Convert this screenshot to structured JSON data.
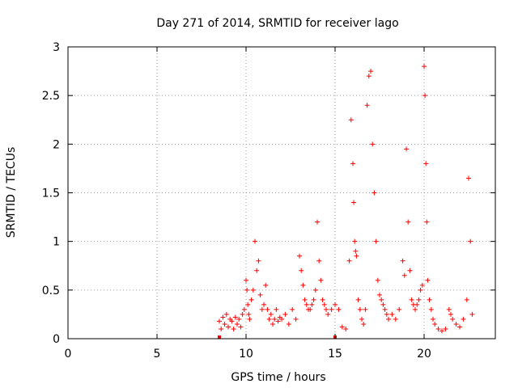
{
  "chart_data": {
    "type": "scatter",
    "title": "Day 271 of 2014, SRMTID for receiver lago",
    "xlabel": "GPS time / hours",
    "ylabel": "SRMTID / TECUs",
    "xlim": [
      0,
      24
    ],
    "ylim": [
      0,
      3
    ],
    "xticks": [
      0,
      5,
      10,
      15,
      20
    ],
    "xtick_labels": [
      "0",
      "5",
      "10",
      "15",
      "20"
    ],
    "yticks": [
      0,
      0.5,
      1,
      1.5,
      2,
      2.5,
      3
    ],
    "ytick_labels": [
      "0",
      "0.5",
      "1",
      "1.5",
      "2",
      "2.5",
      "3"
    ],
    "grid": true,
    "marker": "plus",
    "series_color": "#ff0000",
    "series": [
      {
        "name": "SRMTID",
        "x": [
          8.5,
          8.6,
          8.7,
          8.8,
          8.9,
          9.0,
          9.1,
          9.2,
          9.3,
          9.4,
          9.5,
          9.6,
          9.7,
          9.8,
          9.9,
          10.0,
          10.05,
          10.1,
          10.15,
          10.2,
          10.3,
          10.4,
          10.5,
          10.6,
          10.7,
          10.8,
          10.9,
          11.0,
          11.1,
          11.2,
          11.3,
          11.4,
          11.5,
          11.6,
          11.7,
          11.8,
          11.9,
          12.0,
          12.2,
          12.4,
          12.6,
          12.8,
          13.0,
          13.1,
          13.2,
          13.3,
          13.4,
          13.5,
          13.6,
          13.7,
          13.8,
          13.9,
          14.0,
          14.1,
          14.2,
          14.3,
          14.4,
          14.5,
          14.6,
          14.8,
          15.0,
          15.2,
          15.4,
          15.6,
          15.8,
          15.9,
          16.0,
          16.05,
          16.1,
          16.15,
          16.2,
          16.3,
          16.4,
          16.5,
          16.6,
          16.7,
          16.8,
          16.9,
          17.0,
          17.1,
          17.2,
          17.3,
          17.4,
          17.5,
          17.6,
          17.7,
          17.8,
          17.9,
          18.0,
          18.2,
          18.4,
          18.6,
          18.8,
          18.9,
          19.0,
          19.1,
          19.2,
          19.3,
          19.4,
          19.5,
          19.6,
          19.7,
          19.8,
          19.9,
          20.0,
          20.05,
          20.1,
          20.15,
          20.2,
          20.3,
          20.4,
          20.5,
          20.6,
          20.8,
          21.0,
          21.2,
          21.4,
          21.5,
          21.6,
          21.8,
          22.0,
          22.2,
          22.4,
          22.5,
          22.6,
          22.7
        ],
        "y": [
          0.18,
          0.1,
          0.22,
          0.15,
          0.25,
          0.12,
          0.2,
          0.18,
          0.1,
          0.22,
          0.15,
          0.2,
          0.12,
          0.25,
          0.3,
          0.6,
          0.5,
          0.35,
          0.25,
          0.2,
          0.4,
          0.5,
          1.0,
          0.7,
          0.8,
          0.45,
          0.3,
          0.35,
          0.55,
          0.3,
          0.2,
          0.25,
          0.15,
          0.2,
          0.3,
          0.18,
          0.22,
          0.2,
          0.25,
          0.15,
          0.3,
          0.2,
          0.85,
          0.7,
          0.55,
          0.4,
          0.35,
          0.3,
          0.3,
          0.35,
          0.4,
          0.5,
          1.2,
          0.8,
          0.6,
          0.4,
          0.35,
          0.3,
          0.25,
          0.3,
          0.35,
          0.3,
          0.12,
          0.1,
          0.8,
          2.25,
          1.8,
          1.4,
          1.0,
          0.9,
          0.85,
          0.4,
          0.3,
          0.2,
          0.15,
          0.3,
          2.4,
          2.7,
          2.75,
          2.0,
          1.5,
          1.0,
          0.6,
          0.45,
          0.4,
          0.35,
          0.3,
          0.25,
          0.2,
          0.25,
          0.2,
          0.3,
          0.8,
          0.65,
          1.95,
          1.2,
          0.7,
          0.4,
          0.35,
          0.3,
          0.35,
          0.4,
          0.5,
          0.55,
          2.8,
          2.5,
          1.8,
          1.2,
          0.6,
          0.4,
          0.3,
          0.2,
          0.15,
          0.1,
          0.08,
          0.1,
          0.3,
          0.25,
          0.2,
          0.15,
          0.12,
          0.2,
          0.4,
          1.65,
          1.0,
          0.25
        ]
      }
    ],
    "outliers": [
      {
        "x": 8.5,
        "y": 0.0
      },
      {
        "x": 15.0,
        "y": 0.0
      }
    ]
  }
}
